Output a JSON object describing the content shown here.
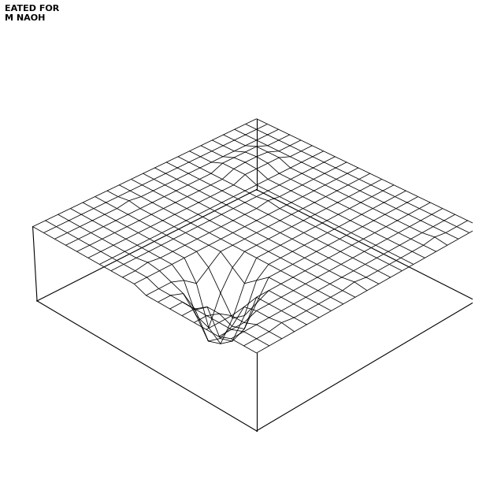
{
  "chart_data": {
    "type": "surface",
    "title": "EATED FOR\nM NAOH",
    "tick_labels": false,
    "color": "#000000",
    "xlim": [
      0,
      19
    ],
    "ylim": [
      0,
      19
    ],
    "zlim": [
      -8,
      2
    ],
    "z": [
      [
        0,
        0,
        0,
        0,
        0,
        0,
        0,
        0,
        0,
        0,
        0,
        0,
        0,
        0,
        0,
        0,
        0,
        0,
        0,
        0
      ],
      [
        0,
        0,
        0,
        0.2,
        0,
        0,
        0,
        0,
        0,
        0.2,
        0,
        0,
        0,
        0,
        0,
        0,
        0.2,
        0,
        0,
        0
      ],
      [
        0,
        0,
        0,
        0,
        0,
        0,
        0,
        0,
        0,
        0,
        0,
        0,
        0,
        0,
        0,
        0,
        0,
        0,
        0,
        0
      ],
      [
        -0.5,
        -0.5,
        -0.5,
        0,
        0,
        0,
        0,
        0,
        0,
        0,
        0,
        0,
        0,
        0,
        0,
        0,
        0,
        0,
        0,
        0
      ],
      [
        -0.5,
        -0.5,
        -0.5,
        -0.3,
        0,
        0,
        0,
        0,
        0,
        0,
        0,
        0,
        0,
        0,
        0,
        0,
        0,
        0,
        0,
        0
      ],
      [
        -0.5,
        -0.5,
        -1,
        -3,
        -4,
        -2,
        0,
        0,
        0,
        0,
        0,
        0,
        0,
        0,
        0,
        0,
        0,
        0,
        0,
        0
      ],
      [
        -0.5,
        -0.5,
        -1,
        -5,
        -6,
        -4,
        -1,
        0,
        0,
        0,
        0,
        0,
        0,
        0,
        0,
        0,
        0,
        0,
        0,
        0
      ],
      [
        -0.5,
        -0.5,
        -2,
        -6,
        -7,
        -5,
        -2,
        0,
        0,
        0,
        0,
        0,
        0,
        0,
        0,
        0,
        0,
        0,
        0,
        0
      ],
      [
        -0.5,
        -0.5,
        -1,
        -4,
        -6,
        -3,
        -1,
        0,
        0,
        0,
        0,
        0,
        0,
        0,
        0,
        0,
        0,
        0,
        0,
        0
      ],
      [
        -0.5,
        -0.5,
        -0.5,
        -1,
        -2,
        -1,
        0,
        0,
        0,
        0,
        0,
        0,
        0,
        0,
        0,
        0,
        0,
        0,
        0,
        0
      ],
      [
        0,
        0,
        0,
        0,
        0,
        0,
        0,
        0,
        0,
        0,
        0,
        0,
        0,
        0,
        0,
        0,
        0,
        0,
        0,
        0
      ],
      [
        0,
        0,
        0.2,
        0,
        0,
        0,
        0,
        0,
        0,
        0,
        0,
        0,
        0.2,
        0,
        0,
        0,
        0,
        0,
        0,
        0
      ],
      [
        0,
        0,
        0,
        0,
        0,
        0,
        0,
        0,
        0,
        0,
        0,
        0,
        0,
        0,
        0,
        0,
        0,
        0,
        0,
        0
      ],
      [
        0,
        0,
        0,
        0,
        0,
        0,
        0,
        0,
        0,
        0,
        0,
        0,
        0,
        0,
        0,
        0,
        0,
        0,
        0,
        0
      ],
      [
        0,
        0,
        0,
        0,
        0,
        0,
        0,
        0,
        0,
        0,
        0,
        0,
        0,
        0.5,
        0.5,
        0.5,
        0.5,
        0,
        0,
        0
      ],
      [
        0,
        0,
        0,
        0,
        0,
        0,
        0,
        0,
        0,
        0,
        0,
        0,
        0,
        0.5,
        0.6,
        0.6,
        0.5,
        0,
        0,
        0
      ],
      [
        0,
        0,
        0,
        0,
        0,
        0,
        0,
        0,
        0,
        0,
        0,
        0,
        0,
        0.5,
        0.5,
        0.5,
        0.5,
        0,
        0,
        0
      ],
      [
        0,
        0,
        0,
        0,
        0,
        0,
        0.2,
        0,
        0,
        0,
        0,
        0,
        0,
        0,
        0,
        0,
        0,
        0,
        0,
        0
      ],
      [
        0,
        0,
        0,
        0,
        0,
        0,
        0,
        0,
        0,
        0,
        0,
        0,
        0,
        0,
        0,
        0,
        0,
        0,
        0,
        0
      ],
      [
        0,
        0,
        0,
        0,
        0,
        0,
        0,
        0,
        0,
        0,
        0,
        0,
        0,
        0,
        0,
        0,
        0,
        0,
        0,
        0
      ]
    ]
  }
}
